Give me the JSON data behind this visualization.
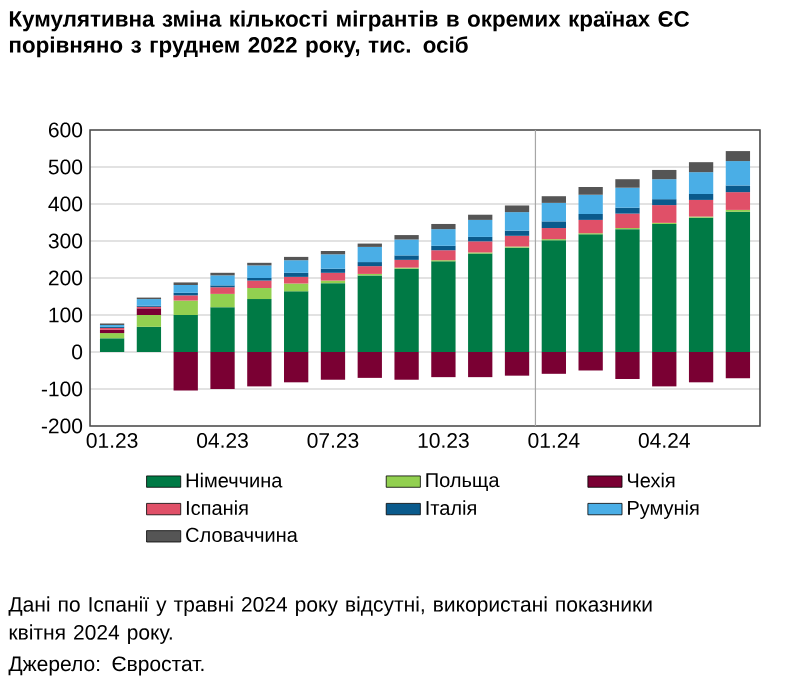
{
  "chart_data": {
    "type": "bar",
    "stacked": true,
    "title": "Кумулятивна зміна кількості мігрантів в окремих країнах ЄС порівняно з груднем 2022 року, тис. осіб",
    "categories": [
      "01.23",
      null,
      null,
      "04.23",
      null,
      null,
      "07.23",
      null,
      null,
      "10.23",
      null,
      null,
      "01.24",
      null,
      null,
      "04.24",
      null,
      null
    ],
    "series": [
      {
        "name": "Німеччина",
        "color": "#007a45",
        "values": [
          37,
          68,
          100,
          121,
          143,
          164,
          186,
          207,
          225,
          245,
          266,
          282,
          302,
          318,
          332,
          346,
          363,
          379
        ]
      },
      {
        "name": "Польща",
        "color": "#92d050",
        "values": [
          14,
          32,
          39,
          36,
          30,
          21,
          7,
          4,
          3,
          3,
          3,
          3,
          3,
          3,
          3,
          3,
          3,
          5
        ]
      },
      {
        "name": "Чехія",
        "color": "#7a0033",
        "values": [
          9,
          18,
          -104,
          -100,
          -93,
          -82,
          -75,
          -70,
          -75,
          -68,
          -68,
          -64,
          -59,
          -50,
          -73,
          -93,
          -82,
          -71
        ]
      },
      {
        "name": "Іспанія",
        "color": "#e05068",
        "values": [
          5,
          4,
          14,
          18,
          20,
          18,
          21,
          21,
          21,
          27,
          30,
          29,
          30,
          36,
          39,
          48,
          45,
          48
        ]
      },
      {
        "name": "Італія",
        "color": "#0a5a8c",
        "values": [
          3,
          3,
          7,
          5,
          7,
          11,
          11,
          11,
          12,
          12,
          12,
          14,
          18,
          16,
          16,
          16,
          16,
          18
        ]
      },
      {
        "name": "Румунія",
        "color": "#4aaee6",
        "values": [
          5,
          18,
          21,
          27,
          34,
          34,
          39,
          41,
          43,
          45,
          46,
          50,
          50,
          52,
          54,
          54,
          59,
          66
        ]
      },
      {
        "name": "Словаччина",
        "color": "#555555",
        "values": [
          4,
          4,
          7,
          7,
          7,
          9,
          9,
          9,
          12,
          14,
          14,
          18,
          18,
          21,
          23,
          25,
          27,
          27
        ]
      }
    ],
    "ylim": [
      -200,
      600
    ],
    "yticks": [
      -200,
      -100,
      0,
      100,
      200,
      300,
      400,
      500,
      600
    ],
    "grid": "y",
    "legend": "bottom",
    "ref_lines": [
      {
        "axis": "x",
        "value": "01.24",
        "color": "#a6a6a6"
      }
    ],
    "annotations": [
      "Дані по Іспанії у травні 2024 року відсутні, використані показники квітня 2024 року.",
      "Джерело: Євростат."
    ]
  }
}
